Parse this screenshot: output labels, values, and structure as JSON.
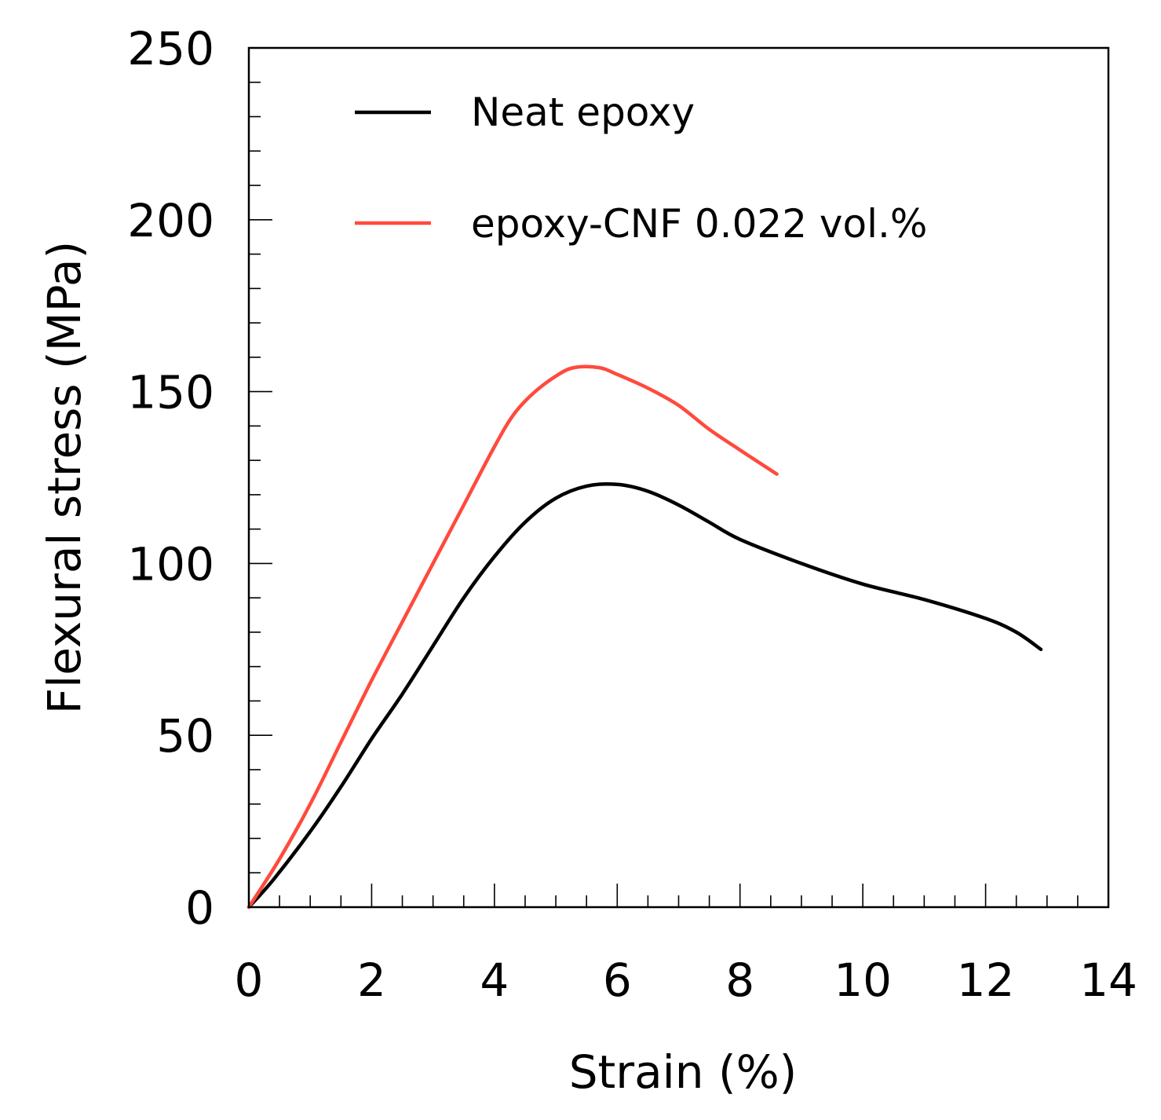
{
  "chart_data": {
    "type": "line",
    "title": "",
    "xlabel": "Strain (%)",
    "ylabel": "Flexural stress (MPa)",
    "xlim": [
      0,
      14
    ],
    "ylim": [
      0,
      250
    ],
    "xticks": [
      0,
      2,
      4,
      6,
      8,
      10,
      12,
      14
    ],
    "xtick_labels": [
      "0",
      "2",
      "4",
      "6",
      "8",
      "10",
      "12",
      "14"
    ],
    "yticks": [
      0,
      50,
      100,
      150,
      200,
      250
    ],
    "ytick_labels": [
      "0",
      "50",
      "100",
      "150",
      "200",
      "250"
    ],
    "x_minor_step": 0.5,
    "y_minor_step": 10,
    "grid": false,
    "legend_position": "top-center",
    "series": [
      {
        "name": "Neat epoxy",
        "color": "#000000",
        "points": [
          [
            0,
            0
          ],
          [
            0.4,
            8
          ],
          [
            1,
            22
          ],
          [
            1.5,
            35
          ],
          [
            2,
            49
          ],
          [
            2.5,
            62
          ],
          [
            3,
            76
          ],
          [
            3.5,
            90
          ],
          [
            4,
            102
          ],
          [
            4.5,
            112
          ],
          [
            5,
            119
          ],
          [
            5.5,
            122.5
          ],
          [
            6,
            123
          ],
          [
            6.5,
            121
          ],
          [
            7,
            117
          ],
          [
            7.5,
            112
          ],
          [
            8,
            107
          ],
          [
            9,
            100
          ],
          [
            10,
            94
          ],
          [
            11,
            89.5
          ],
          [
            12,
            84
          ],
          [
            12.5,
            80
          ],
          [
            12.9,
            75
          ]
        ]
      },
      {
        "name": "epoxy-CNF 0.022 vol.%",
        "color": "#ff4a3d",
        "points": [
          [
            0,
            0
          ],
          [
            0.5,
            14
          ],
          [
            1,
            30
          ],
          [
            1.5,
            48
          ],
          [
            2,
            66
          ],
          [
            2.5,
            83
          ],
          [
            3,
            100
          ],
          [
            3.5,
            117
          ],
          [
            4,
            134
          ],
          [
            4.3,
            143
          ],
          [
            4.6,
            149
          ],
          [
            5,
            154.5
          ],
          [
            5.3,
            157
          ],
          [
            5.7,
            157
          ],
          [
            6,
            155
          ],
          [
            6.5,
            151
          ],
          [
            7,
            146
          ],
          [
            7.5,
            139
          ],
          [
            8,
            133
          ],
          [
            8.6,
            126
          ]
        ]
      }
    ]
  }
}
